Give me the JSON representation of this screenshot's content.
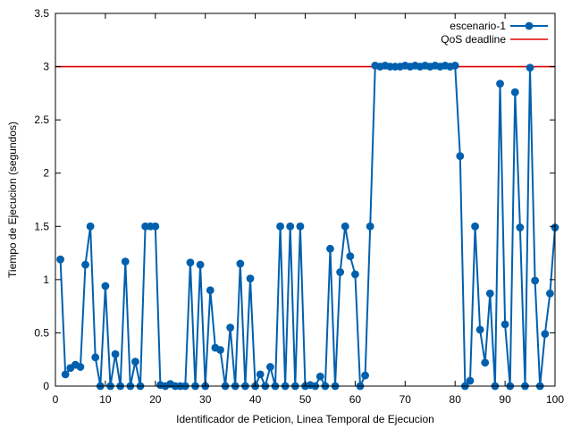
{
  "chart_data": {
    "type": "line",
    "title": "",
    "xlabel": "Identificador de Peticion, Linea Temporal de Ejecucion",
    "ylabel": "Tiempo de Ejecucion (segundos)",
    "xlim": [
      0,
      100
    ],
    "ylim": [
      0,
      3.5
    ],
    "xticks": [
      0,
      10,
      20,
      30,
      40,
      50,
      60,
      70,
      80,
      90,
      100
    ],
    "yticks": [
      0,
      0.5,
      1,
      1.5,
      2,
      2.5,
      3,
      3.5
    ],
    "xtick_labels": [
      "0",
      "10",
      "20",
      "30",
      "40",
      "50",
      "60",
      "70",
      "80",
      "90",
      "100"
    ],
    "ytick_labels": [
      "0",
      "0.5",
      "1",
      "1.5",
      "2",
      "2.5",
      "3",
      "3.5"
    ],
    "grid": false,
    "legend_position": "top-right",
    "series": [
      {
        "name": "escenario-1",
        "color": "#0060ad",
        "marker": "circle",
        "x": [
          1,
          2,
          3,
          4,
          5,
          6,
          7,
          8,
          9,
          10,
          11,
          12,
          13,
          14,
          15,
          16,
          17,
          18,
          19,
          20,
          21,
          22,
          23,
          24,
          25,
          26,
          27,
          28,
          29,
          30,
          31,
          32,
          33,
          34,
          35,
          36,
          37,
          38,
          39,
          40,
          41,
          42,
          43,
          44,
          45,
          46,
          47,
          48,
          49,
          50,
          51,
          52,
          53,
          54,
          55,
          56,
          57,
          58,
          59,
          60,
          61,
          62,
          63,
          64,
          65,
          66,
          67,
          68,
          69,
          70,
          71,
          72,
          73,
          74,
          75,
          76,
          77,
          78,
          79,
          80,
          81,
          82,
          83,
          84,
          85,
          86,
          87,
          88,
          89,
          90,
          91,
          92,
          93,
          94,
          95,
          96,
          97,
          98,
          99,
          100
        ],
        "y": [
          1.19,
          0.11,
          0.17,
          0.2,
          0.18,
          1.14,
          1.5,
          0.27,
          0.0,
          0.94,
          0.0,
          0.3,
          0.0,
          1.17,
          0.0,
          0.23,
          0.0,
          1.5,
          1.5,
          1.5,
          0.01,
          0.0,
          0.02,
          0.0,
          0.0,
          0.0,
          1.16,
          0.0,
          1.14,
          0.0,
          0.9,
          0.36,
          0.34,
          0.0,
          0.55,
          0.0,
          1.15,
          0.0,
          1.01,
          0.0,
          0.11,
          0.0,
          0.18,
          0.0,
          1.5,
          0.0,
          1.5,
          0.0,
          1.5,
          0.0,
          0.01,
          0.0,
          0.09,
          0.0,
          1.29,
          0.0,
          1.07,
          1.5,
          1.22,
          1.05,
          0.0,
          0.1,
          1.5,
          3.01,
          3.0,
          3.01,
          3.0,
          3.0,
          3.0,
          3.01,
          3.0,
          3.01,
          3.0,
          3.01,
          3.0,
          3.01,
          3.0,
          3.01,
          3.0,
          3.01,
          2.16,
          0.0,
          0.05,
          1.5,
          0.53,
          0.22,
          0.87,
          0.0,
          2.84,
          0.58,
          0.0,
          2.76,
          1.49,
          0.0,
          2.99,
          0.99,
          0.0,
          0.49,
          0.87,
          1.49
        ]
      }
    ],
    "reference_lines": [
      {
        "name": "QoS deadline",
        "y": 3.0,
        "color": "#e00000"
      }
    ]
  }
}
